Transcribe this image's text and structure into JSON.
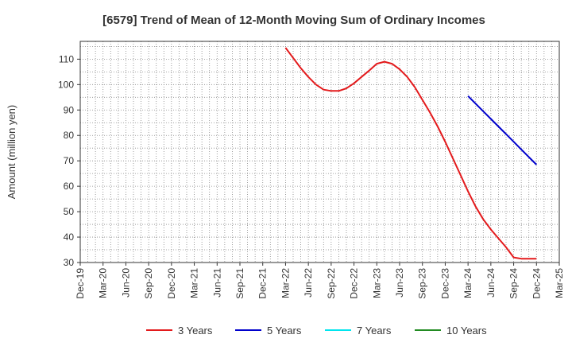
{
  "chart_data": {
    "type": "line",
    "title": "[6579]  Trend of Mean of 12-Month Moving Sum of Ordinary Incomes",
    "xlabel": "",
    "ylabel": "Amount (million yen)",
    "ylim": [
      30,
      117
    ],
    "yticks": [
      30,
      40,
      50,
      60,
      70,
      80,
      90,
      100,
      110
    ],
    "categories": [
      "Dec-19",
      "Mar-20",
      "Jun-20",
      "Sep-20",
      "Dec-20",
      "Mar-21",
      "Jun-21",
      "Sep-21",
      "Dec-21",
      "Mar-22",
      "Jun-22",
      "Sep-22",
      "Dec-22",
      "Mar-23",
      "Jun-23",
      "Sep-23",
      "Dec-23",
      "Mar-24",
      "Jun-24",
      "Sep-24",
      "Dec-24",
      "Mar-25"
    ],
    "grid": true,
    "legend_position": "bottom",
    "series": [
      {
        "name": "3 Years",
        "color": "#e31a1c",
        "x": [
          "Mar-22",
          "Apr-22",
          "May-22",
          "Jun-22",
          "Jul-22",
          "Aug-22",
          "Sep-22",
          "Oct-22",
          "Nov-22",
          "Dec-22",
          "Jan-23",
          "Feb-23",
          "Mar-23",
          "Apr-23",
          "May-23",
          "Jun-23",
          "Jul-23",
          "Aug-23",
          "Sep-23",
          "Oct-23",
          "Nov-23",
          "Dec-23",
          "Jan-24",
          "Feb-24",
          "Mar-24",
          "Apr-24",
          "May-24",
          "Jun-24",
          "Jul-24",
          "Aug-24",
          "Sep-24",
          "Oct-24",
          "Nov-24",
          "Dec-24"
        ],
        "values": [
          114.5,
          110.5,
          106.5,
          103,
          100,
          98,
          97.5,
          97.5,
          98.5,
          100.5,
          103,
          105.5,
          108.2,
          109,
          108.2,
          106,
          103,
          99,
          94,
          89,
          83.5,
          77.5,
          71,
          64.5,
          58,
          52,
          47,
          43,
          39.5,
          36,
          32,
          31.5,
          31.5,
          31.5
        ]
      },
      {
        "name": "5 Years",
        "color": "#0000cc",
        "x": [
          "Mar-24",
          "Apr-24",
          "May-24",
          "Jun-24",
          "Jul-24",
          "Aug-24",
          "Sep-24",
          "Oct-24",
          "Nov-24",
          "Dec-24"
        ],
        "values": [
          95.5,
          92.5,
          89.5,
          86.5,
          83.5,
          80.5,
          77.5,
          74.5,
          71.5,
          68.5
        ]
      },
      {
        "name": "7 Years",
        "color": "#00e5ee",
        "x": [],
        "values": []
      },
      {
        "name": "10 Years",
        "color": "#228b22",
        "x": [],
        "values": []
      }
    ]
  }
}
